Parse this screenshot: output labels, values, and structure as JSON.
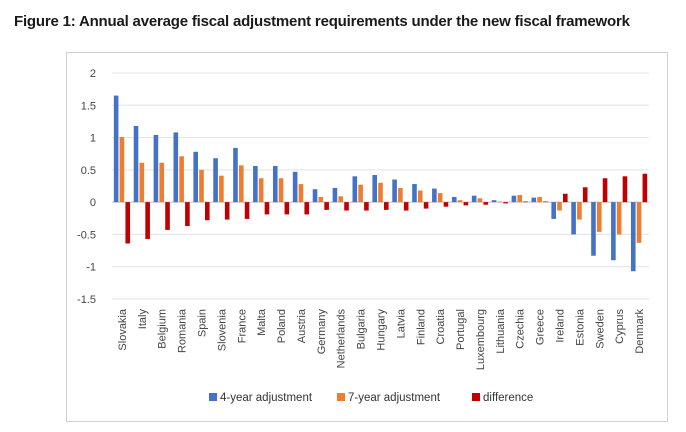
{
  "figure_title": "Figure 1: Annual average fiscal adjustment requirements under the new fiscal framework",
  "chart_data": {
    "type": "bar",
    "categories": [
      "Slovakia",
      "Italy",
      "Belgium",
      "Romania",
      "Spain",
      "Slovenia",
      "France",
      "Malta",
      "Poland",
      "Austria",
      "Germany",
      "Netherlands",
      "Bulgaria",
      "Hungary",
      "Latvia",
      "Finland",
      "Croatia",
      "Portugal",
      "Luxembourg",
      "Lithuania",
      "Czechia",
      "Greece",
      "Ireland",
      "Estonia",
      "Sweden",
      "Cyprus",
      "Denmark"
    ],
    "series": [
      {
        "name": "4-year adjustment",
        "color": "#4472C4",
        "values": [
          1.65,
          1.18,
          1.04,
          1.08,
          0.78,
          0.68,
          0.84,
          0.56,
          0.56,
          0.47,
          0.2,
          0.22,
          0.4,
          0.42,
          0.35,
          0.28,
          0.21,
          0.08,
          0.1,
          0.03,
          0.1,
          0.07,
          -0.26,
          -0.5,
          -0.83,
          -0.9,
          -1.07
        ]
      },
      {
        "name": "7-year adjustment",
        "color": "#ED7D31",
        "values": [
          1.01,
          0.61,
          0.61,
          0.71,
          0.5,
          0.41,
          0.57,
          0.37,
          0.37,
          0.28,
          0.08,
          0.09,
          0.27,
          0.3,
          0.22,
          0.18,
          0.14,
          0.03,
          0.06,
          0.01,
          0.11,
          0.08,
          -0.13,
          -0.27,
          -0.46,
          -0.5,
          -0.63
        ]
      },
      {
        "name": "difference",
        "color": "#C00000",
        "values": [
          -0.64,
          -0.57,
          -0.43,
          -0.37,
          -0.28,
          -0.27,
          -0.26,
          -0.19,
          -0.19,
          -0.19,
          -0.12,
          -0.13,
          -0.13,
          -0.12,
          -0.13,
          -0.1,
          -0.07,
          -0.05,
          -0.04,
          -0.02,
          0.01,
          0.01,
          0.13,
          0.23,
          0.37,
          0.4,
          0.44
        ]
      }
    ],
    "yticks": [
      "2",
      "1.5",
      "1",
      "0.5",
      "0",
      "-0.5",
      "-1",
      "-1.5"
    ],
    "ylim": [
      -1.5,
      2
    ],
    "grid": true,
    "legend_position": "bottom"
  }
}
